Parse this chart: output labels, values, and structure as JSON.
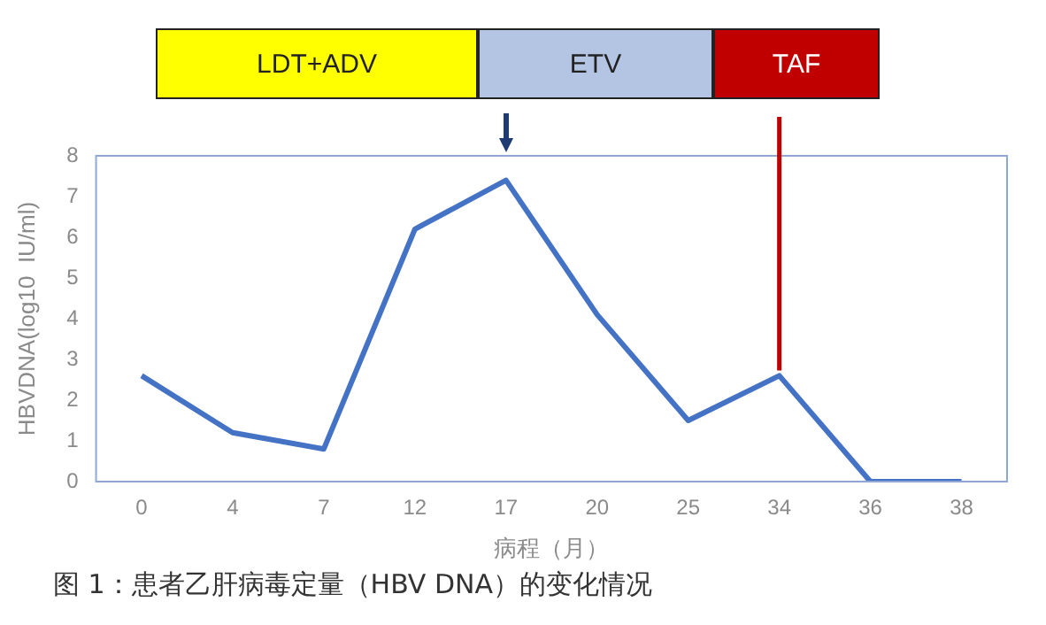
{
  "chart_data": {
    "type": "line",
    "xlabel": "病程（月）",
    "ylabel": "HBVDNA(log10  IU/ml)",
    "categories": [
      "0",
      "4",
      "7",
      "12",
      "17",
      "20",
      "25",
      "34",
      "36",
      "38"
    ],
    "series": [
      {
        "color": "#4472c4",
        "values": [
          2.6,
          1.2,
          0.8,
          6.2,
          7.4,
          4.1,
          1.5,
          2.6,
          0,
          0
        ]
      }
    ],
    "ylim": [
      0,
      8
    ],
    "yticks": [
      0,
      1,
      2,
      3,
      4,
      5,
      6,
      7,
      8
    ],
    "grid": false,
    "legend": false,
    "marker": "none",
    "line_style": "solid",
    "ref_lines": [
      {
        "axis": "x",
        "value": "34",
        "color": "#c00000"
      }
    ],
    "annotations": [
      "LDT+ADV",
      "ETV",
      "TAF",
      "图 1：患者乙肝病毒定量（HBV DNA）的变化情况"
    ]
  }
}
